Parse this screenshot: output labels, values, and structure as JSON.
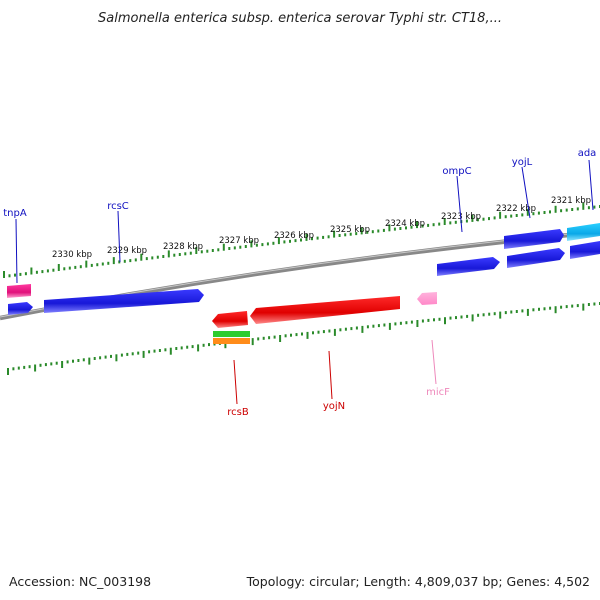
{
  "title": "Salmonella enterica subsp. enterica serovar Typhi str. CT18,...",
  "footer": {
    "accession": "Accession: NC_003198",
    "summary": "Topology: circular; Length: 4,809,037 bp; Genes: 4,502"
  },
  "scale_labels": [
    "2330 kbp",
    "2329 kbp",
    "2328 kbp",
    "2327 kbp",
    "2326 kbp",
    "2325 kbp",
    "2324 kbp",
    "2323 kbp",
    "2322 kbp",
    "2321 kbp"
  ],
  "gene_labels": [
    {
      "id": "tnpA",
      "text": "tnpA",
      "color": "#1010c0"
    },
    {
      "id": "rcsC",
      "text": "rcsC",
      "color": "#1010c0"
    },
    {
      "id": "ompC",
      "text": "ompC",
      "color": "#1010c0"
    },
    {
      "id": "yojL",
      "text": "yojL",
      "color": "#1010c0"
    },
    {
      "id": "ada",
      "text": "ada",
      "color": "#1010c0"
    },
    {
      "id": "rcsB",
      "text": "rcsB",
      "color": "#cc0000"
    },
    {
      "id": "yojN",
      "text": "yojN",
      "color": "#cc0000"
    },
    {
      "id": "micF",
      "text": "micF",
      "color": "#ee88bb"
    }
  ],
  "colors": {
    "forward_cds": "#1a1ae6",
    "reverse_cds": "#ee1111",
    "rna": "#ff99cc",
    "backbone": "#888888",
    "ticks": "#2a8a2a"
  }
}
